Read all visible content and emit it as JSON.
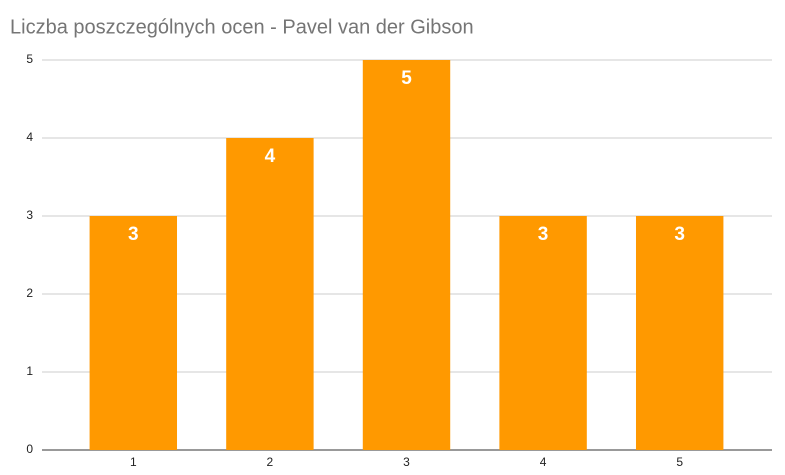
{
  "chart_data": {
    "type": "bar",
    "title": "Liczba poszczególnych ocen - Pavel van der Gibson",
    "categories": [
      "1",
      "2",
      "3",
      "4",
      "5"
    ],
    "values": [
      3,
      4,
      5,
      3,
      3
    ],
    "color": "#ff9900",
    "ylim": [
      0,
      5
    ],
    "yticks": [
      0,
      1,
      2,
      3,
      4,
      5
    ],
    "grid": true
  }
}
